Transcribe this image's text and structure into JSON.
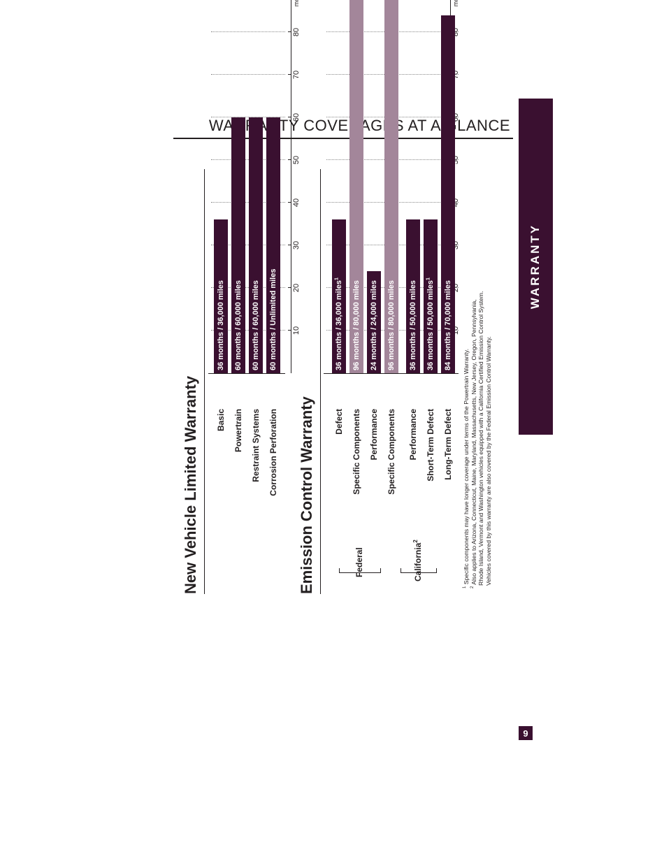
{
  "header": {
    "title": "WARRANTY COVERAGES AT A GLANCE"
  },
  "sidetab": {
    "label": "WARRANTY"
  },
  "page_number": "9",
  "colors": {
    "bar_dark": "#3a1030",
    "bar_light": "#a3869a",
    "tab": "#3a1030"
  },
  "axis": {
    "ticks": [
      "10",
      "20",
      "30",
      "40",
      "50",
      "60",
      "70",
      "80"
    ],
    "unit": "months"
  },
  "sections": {
    "new_vehicle": {
      "title": "New Vehicle Limited Warranty",
      "rows": [
        {
          "label": "Basic",
          "bar_text": "36 months  /  36,000 miles",
          "months": 36,
          "note": ""
        },
        {
          "label": "Powertrain",
          "bar_text": "60 months  /  60,000 miles",
          "months": 60,
          "note": ""
        },
        {
          "label": "Restraint Systems",
          "bar_text": "60 months  /  60,000 miles",
          "months": 60,
          "note": ""
        },
        {
          "label": "Corrosion Perforation",
          "bar_text": "60 months  /  Unlimited miles",
          "months": 60,
          "note": ""
        }
      ]
    },
    "emission": {
      "title": "Emission Control Warranty",
      "federal_label": "Federal",
      "california_label": "California",
      "california_sup": "2",
      "rows": [
        {
          "label": "Defect",
          "bar_text": "36 months  /  36,000 miles",
          "months": 36,
          "note": "1"
        },
        {
          "label": "Specific Components",
          "bar_text": "96 months  /  80,000 miles",
          "months": 96,
          "note": ""
        },
        {
          "label": "Performance",
          "bar_text": "24 months  /  24,000 miles",
          "months": 24,
          "note": ""
        },
        {
          "label": "Specific Components",
          "bar_text": "96 months  /  80,000 miles",
          "months": 96,
          "note": ""
        },
        {
          "label": "Performance",
          "bar_text": "36 months  /  50,000 miles",
          "months": 36,
          "note": ""
        },
        {
          "label": "Short-Term Defect",
          "bar_text": "36 months  /  50,000 miles",
          "months": 36,
          "note": "1"
        },
        {
          "label": "Long-Term Defect",
          "bar_text": "84 months  /  70,000 miles",
          "months": 84,
          "note": ""
        }
      ]
    }
  },
  "footnotes": {
    "note1_mark": "1",
    "note1": "Specific components may have longer coverage under terms of the Powertrain Warranty.",
    "note2_mark": "2",
    "note2_line1": "Also applies to Arizona, Connecticut, Maine, Maryland, Massachusetts, New Jersey, Oregon, Pennsylvania,",
    "note2_line2": "Rhode Island, Vermont and Washington vehicles equipped with a California Certified Emission Control System.",
    "note2_line3": "Vehicles covered by this warranty are also covered by the Federal Emission Control Warranty."
  }
}
